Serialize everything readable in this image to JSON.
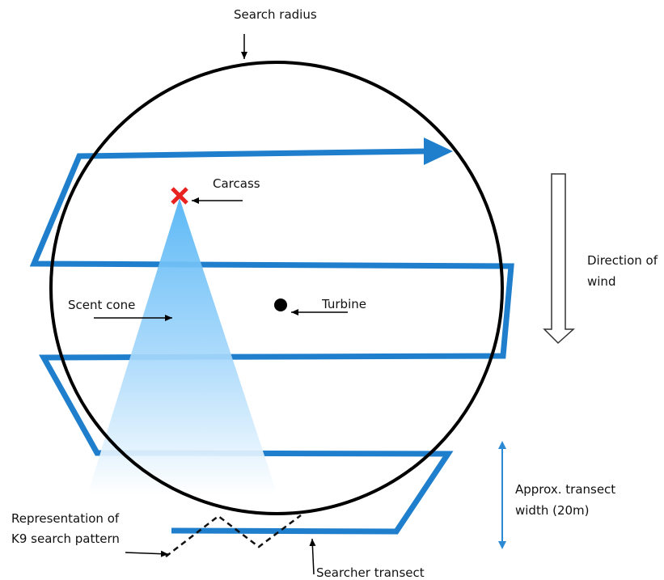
{
  "labels": {
    "search_radius": "Search radius",
    "carcass": "Carcass",
    "direction_of_wind_line1": "Direction of",
    "direction_of_wind_line2": "wind",
    "scent_cone": "Scent cone",
    "turbine": "Turbine",
    "k9_line1": "Representation of",
    "k9_line2": "K9 search pattern",
    "transect_width_line1": "Approx. transect",
    "transect_width_line2": "width (20m)",
    "searcher_transect": "Searcher transect"
  },
  "colors": {
    "transect_blue": "#1f7fcc",
    "arrow_blue": "#2a8ad6",
    "carcass_red": "#e8231f",
    "circle_black": "#000000",
    "scent_top": "#4fb3f5",
    "scent_bottom": "#ffffff"
  },
  "icons": {
    "carcass_marker": "x-mark-icon",
    "turbine_marker": "dot-icon",
    "wind_arrow": "down-arrow-icon"
  }
}
